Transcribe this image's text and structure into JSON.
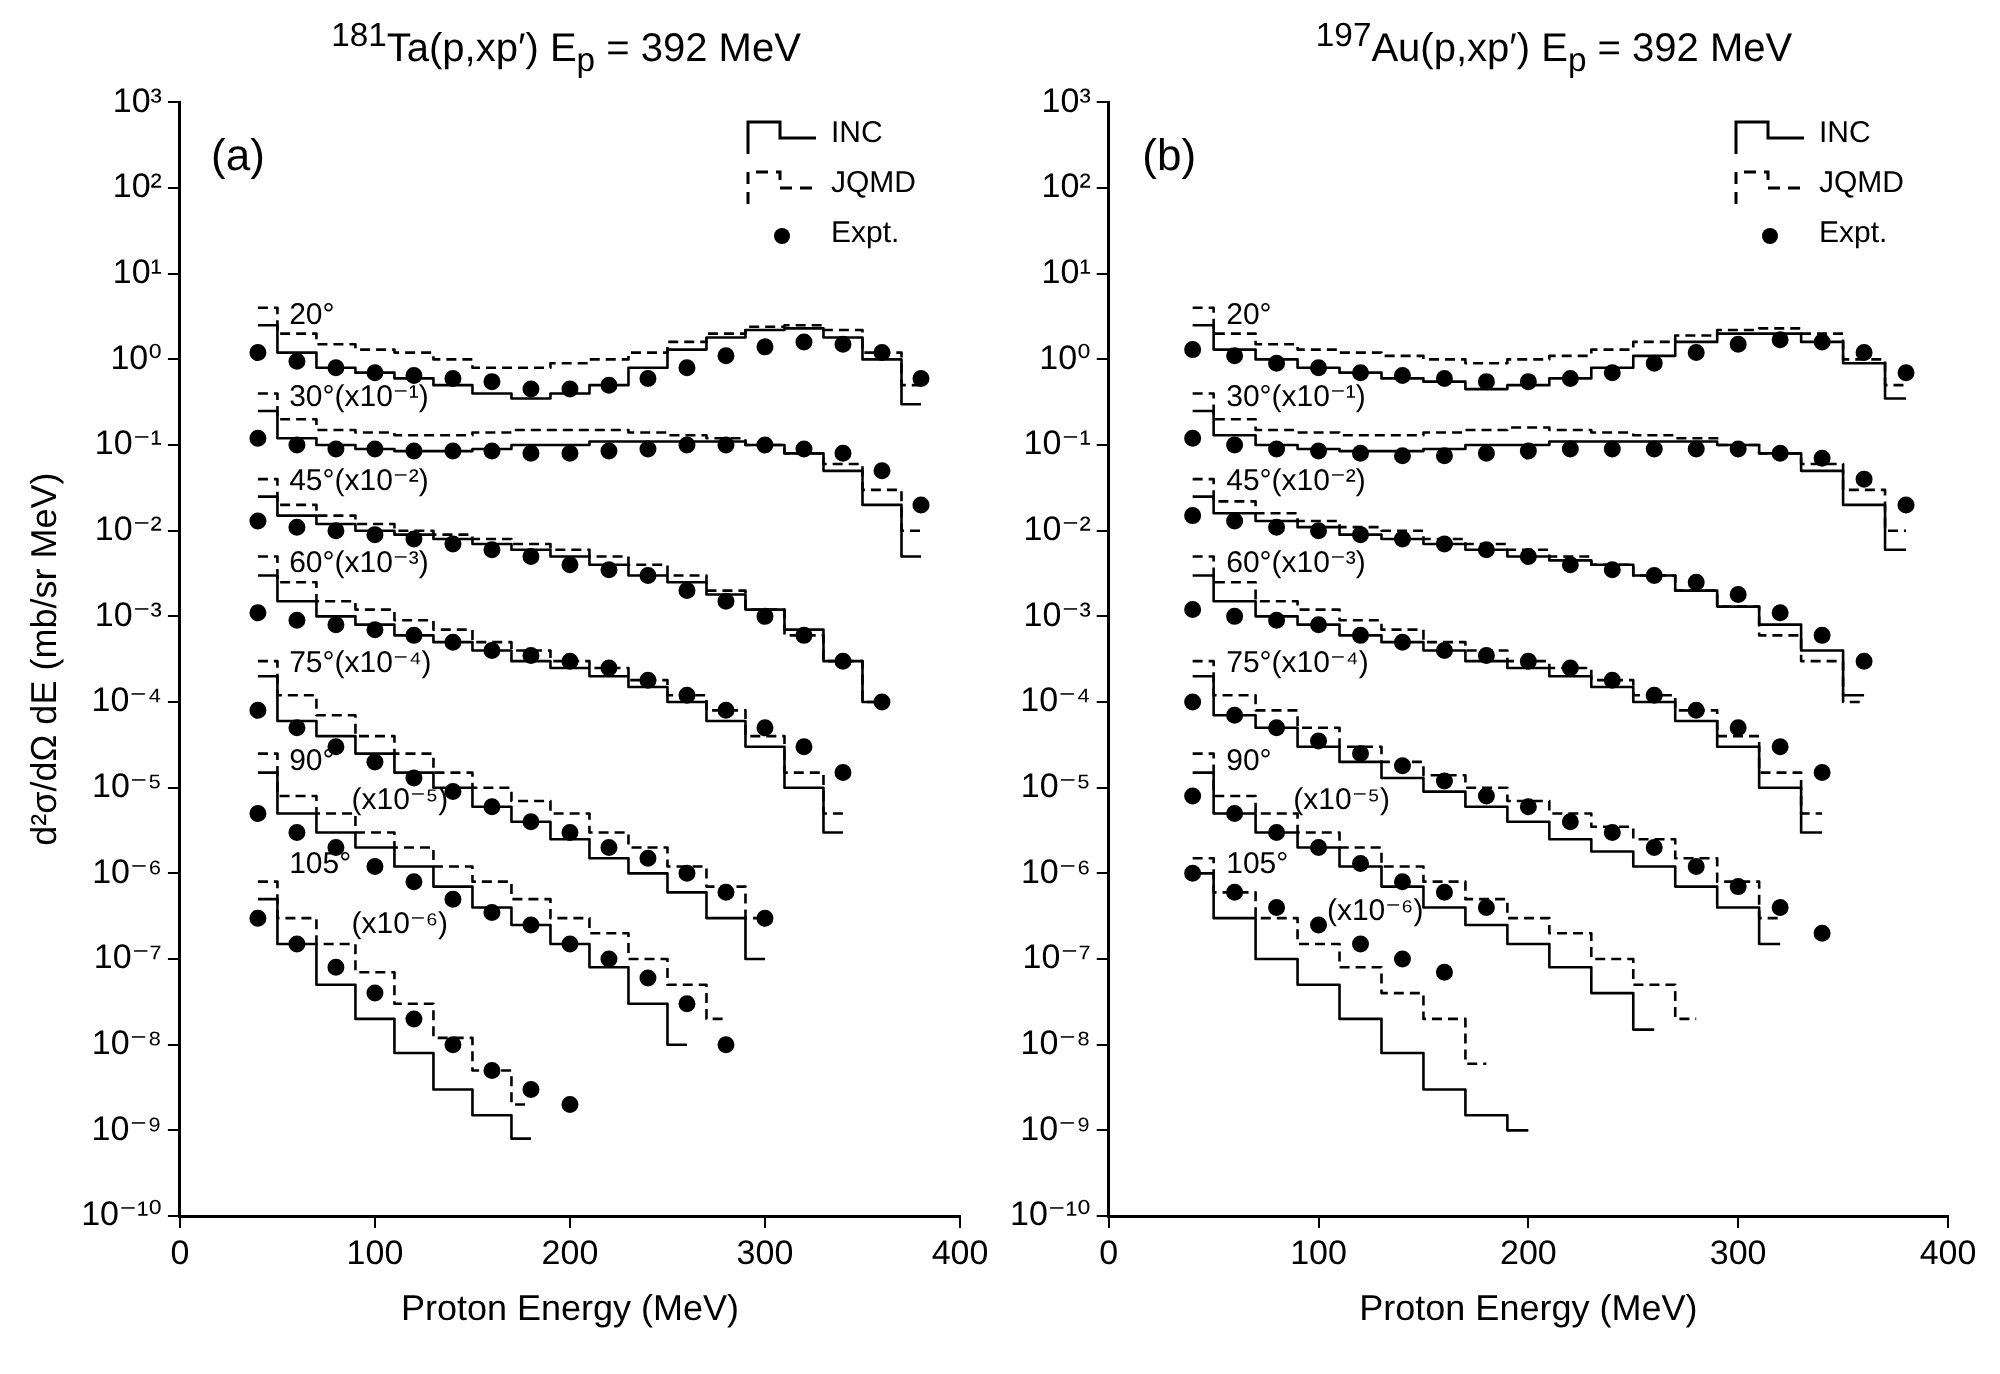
{
  "chart_data": [
    {
      "type": "step",
      "title": "$^{181}$Ta(p,xp′)   E$_{p}$ = 392 MeV",
      "xlabel": "Proton Energy (MeV)",
      "ylabel": "d²σ/dΩ dE (mb/sr MeV)",
      "log": true,
      "legend": "top right",
      "xlim": [
        0,
        400
      ],
      "ylim": [
        1e-10,
        1000
      ],
      "xticks": [
        0,
        100,
        200,
        300,
        400
      ],
      "yticks": [
        {
          "value": 1e-10,
          "label": "10⁻¹⁰"
        },
        {
          "value": 1e-09,
          "label": "10⁻⁹"
        },
        {
          "value": 1e-08,
          "label": "10⁻⁸"
        },
        {
          "value": 1e-07,
          "label": "10⁻⁷"
        },
        {
          "value": 1e-06,
          "label": "10⁻⁶"
        },
        {
          "value": 1e-05,
          "label": "10⁻⁵"
        },
        {
          "value": 0.0001,
          "label": "10⁻⁴"
        },
        {
          "value": 0.001,
          "label": "10⁻³"
        },
        {
          "value": 0.01,
          "label": "10⁻²"
        },
        {
          "value": 0.1,
          "label": "10⁻¹"
        },
        {
          "value": 1,
          "label": "10⁰"
        },
        {
          "value": 10,
          "label": "10¹"
        },
        {
          "value": 100,
          "label": "10²"
        },
        {
          "value": 1000,
          "label": "10³"
        }
      ],
      "x": [
        40,
        60,
        80,
        100,
        120,
        140,
        160,
        180,
        200,
        220,
        240,
        260,
        280,
        300,
        320,
        340,
        360,
        380
      ],
      "annotations": [
        "(a)",
        "20°",
        "30°(x10⁻¹)",
        "45°(x10⁻²)",
        "60°(x10⁻³)",
        "75°(x10⁻⁴)",
        "90°",
        "(x10⁻⁵)",
        "105°",
        "(x10⁻⁶)"
      ],
      "series": [
        {
          "name": "INC",
          "line_style": "solid",
          "color": "#000000",
          "values": [
            2.5,
            1.2,
            0.8,
            0.7,
            0.6,
            0.5,
            0.4,
            0.35,
            0.4,
            0.5,
            0.8,
            1.3,
            1.8,
            2.2,
            2.3,
            1.8,
            1,
            0.3
          ]
        },
        {
          "name": "JQMD",
          "line_style": "dashed",
          "color": "#000000",
          "values": [
            4,
            2,
            1.5,
            1.3,
            1.2,
            1,
            0.8,
            0.8,
            0.9,
            1,
            1.2,
            1.6,
            2,
            2.4,
            2.5,
            2.2,
            1.2,
            0.5
          ]
        },
        {
          "name": "Expt.",
          "type": "scatter",
          "marker": "circle",
          "color": "#000000",
          "values": [
            1.2,
            0.95,
            0.8,
            0.7,
            0.65,
            0.6,
            0.55,
            0.45,
            0.45,
            0.5,
            0.6,
            0.8,
            1.1,
            1.4,
            1.6,
            1.5,
            1.2,
            0.6
          ]
        },
        {
          "line_style": "solid",
          "color": "#000000",
          "values": [
            0.25,
            0.12,
            0.1,
            0.09,
            0.085,
            0.085,
            0.09,
            0.1,
            0.1,
            0.11,
            0.11,
            0.11,
            0.11,
            0.1,
            0.08,
            0.05,
            0.02,
            0.005
          ]
        },
        {
          "line_style": "dashed",
          "color": "#000000",
          "values": [
            0.4,
            0.2,
            0.15,
            0.14,
            0.13,
            0.13,
            0.14,
            0.15,
            0.15,
            0.15,
            0.14,
            0.13,
            0.12,
            0.1,
            0.08,
            0.06,
            0.03,
            0.01
          ]
        },
        {
          "type": "scatter",
          "marker": "circle",
          "color": "#000000",
          "values": [
            0.12,
            0.1,
            0.09,
            0.09,
            0.085,
            0.085,
            0.085,
            0.08,
            0.08,
            0.085,
            0.09,
            0.1,
            0.1,
            0.1,
            0.09,
            0.08,
            0.05,
            0.02
          ]
        },
        {
          "line_style": "solid",
          "color": "#000000",
          "values": [
            0.025,
            0.015,
            0.012,
            0.01,
            0.009,
            0.008,
            0.007,
            0.006,
            0.005,
            0.004,
            0.003,
            0.0025,
            0.0018,
            0.0012,
            0.0007,
            0.0003,
            0.0001,
            null
          ]
        },
        {
          "line_style": "dashed",
          "color": "#000000",
          "values": [
            0.04,
            0.02,
            0.015,
            0.012,
            0.01,
            0.009,
            0.008,
            0.007,
            0.006,
            0.005,
            0.004,
            0.003,
            0.002,
            0.0012,
            0.0006,
            0.0003,
            0.0001,
            null
          ]
        },
        {
          "type": "scatter",
          "marker": "circle",
          "color": "#000000",
          "values": [
            0.013,
            0.011,
            0.01,
            0.009,
            0.008,
            0.007,
            0.006,
            0.005,
            0.004,
            0.0035,
            0.003,
            0.002,
            0.0015,
            0.001,
            0.0006,
            0.0003,
            0.0001,
            null
          ]
        },
        {
          "line_style": "solid",
          "color": "#000000",
          "values": [
            0.003,
            0.0015,
            0.001,
            0.0008,
            0.0006,
            0.0005,
            0.0004,
            0.0003,
            0.00025,
            0.0002,
            0.00015,
            0.0001,
            6e-05,
            3e-05,
            1e-05,
            3e-06,
            null,
            null
          ]
        },
        {
          "line_style": "dashed",
          "color": "#000000",
          "values": [
            0.005,
            0.0025,
            0.0015,
            0.0012,
            0.0009,
            0.0007,
            0.0005,
            0.0004,
            0.0003,
            0.00025,
            0.00018,
            0.00012,
            8e-05,
            4e-05,
            1.5e-05,
            5e-06,
            null,
            null
          ]
        },
        {
          "type": "scatter",
          "marker": "circle",
          "color": "#000000",
          "values": [
            0.0011,
            0.0009,
            0.0008,
            0.0007,
            0.0006,
            0.0005,
            0.0004,
            0.00035,
            0.0003,
            0.00025,
            0.00018,
            0.00012,
            8e-05,
            5e-05,
            3e-05,
            1.5e-05,
            null,
            null
          ]
        },
        {
          "line_style": "solid",
          "color": "#000000",
          "values": [
            0.0002,
            6e-05,
            4e-05,
            2.5e-05,
            1.5e-05,
            1e-05,
            6e-06,
            4e-06,
            2.5e-06,
            1.5e-06,
            1e-06,
            6e-07,
            3e-07,
            1e-07,
            null,
            null,
            null,
            null
          ]
        },
        {
          "line_style": "dashed",
          "color": "#000000",
          "values": [
            0.0003,
            0.00012,
            7e-05,
            4e-05,
            2.5e-05,
            1.5e-05,
            1e-05,
            7e-06,
            5e-06,
            3e-06,
            2e-06,
            1.2e-06,
            7e-07,
            3e-07,
            null,
            null,
            null,
            null
          ]
        },
        {
          "type": "scatter",
          "marker": "circle",
          "color": "#000000",
          "values": [
            8e-05,
            5e-05,
            3e-05,
            2e-05,
            1.3e-05,
            9e-06,
            6e-06,
            4e-06,
            3e-06,
            2e-06,
            1.5e-06,
            1e-06,
            6e-07,
            3e-07,
            null,
            null,
            null,
            null
          ]
        },
        {
          "line_style": "solid",
          "color": "#000000",
          "values": [
            1.5e-05,
            5e-06,
            3e-06,
            2e-06,
            1.2e-06,
            7e-07,
            4e-07,
            2.5e-07,
            1.5e-07,
            8e-08,
            3e-08,
            1e-08,
            null,
            null,
            null,
            null,
            null,
            null
          ]
        },
        {
          "line_style": "dashed",
          "color": "#000000",
          "values": [
            2.5e-05,
            8e-06,
            5e-06,
            3e-06,
            2e-06,
            1.2e-06,
            8e-07,
            5e-07,
            3e-07,
            2e-07,
            1e-07,
            5e-08,
            2e-08,
            null,
            null,
            null,
            null,
            null
          ]
        },
        {
          "type": "scatter",
          "marker": "circle",
          "color": "#000000",
          "values": [
            5e-06,
            3e-06,
            2e-06,
            1.2e-06,
            8e-07,
            5e-07,
            3.5e-07,
            2.5e-07,
            1.5e-07,
            1e-07,
            6e-08,
            3e-08,
            1e-08,
            null,
            null,
            null,
            null,
            null
          ]
        },
        {
          "line_style": "solid",
          "color": "#000000",
          "values": [
            5e-07,
            1.5e-07,
            5e-08,
            2e-08,
            8e-09,
            3e-09,
            1.5e-09,
            8e-10,
            null,
            null,
            null,
            null,
            null,
            null,
            null,
            null,
            null,
            null
          ]
        },
        {
          "line_style": "dashed",
          "color": "#000000",
          "values": [
            8e-07,
            3e-07,
            1.5e-07,
            7e-08,
            3e-08,
            1.2e-08,
            5e-09,
            2e-09,
            null,
            null,
            null,
            null,
            null,
            null,
            null,
            null,
            null,
            null
          ]
        },
        {
          "type": "scatter",
          "marker": "circle",
          "color": "#000000",
          "values": [
            3e-07,
            1.5e-07,
            8e-08,
            4e-08,
            2e-08,
            1e-08,
            5e-09,
            3e-09,
            2e-09,
            null,
            null,
            null,
            null,
            null,
            null,
            null,
            null,
            null
          ]
        }
      ]
    },
    {
      "type": "step",
      "title": "$^{197}$Au(p,xp′)   E$_{p}$ = 392 MeV",
      "xlabel": "Proton Energy (MeV)",
      "log": true,
      "legend": "top right",
      "xlim": [
        0,
        400
      ],
      "ylim": [
        1e-10,
        1000
      ],
      "xticks": [
        0,
        100,
        200,
        300,
        400
      ],
      "yticks": [
        {
          "value": 1e-10,
          "label": "10⁻¹⁰"
        },
        {
          "value": 1e-09,
          "label": "10⁻⁹"
        },
        {
          "value": 1e-08,
          "label": "10⁻⁸"
        },
        {
          "value": 1e-07,
          "label": "10⁻⁷"
        },
        {
          "value": 1e-06,
          "label": "10⁻⁶"
        },
        {
          "value": 1e-05,
          "label": "10⁻⁵"
        },
        {
          "value": 0.0001,
          "label": "10⁻⁴"
        },
        {
          "value": 0.001,
          "label": "10⁻³"
        },
        {
          "value": 0.01,
          "label": "10⁻²"
        },
        {
          "value": 0.1,
          "label": "10⁻¹"
        },
        {
          "value": 1,
          "label": "10⁰"
        },
        {
          "value": 10,
          "label": "10¹"
        },
        {
          "value": 100,
          "label": "10²"
        },
        {
          "value": 1000,
          "label": "10³"
        }
      ],
      "x": [
        40,
        60,
        80,
        100,
        120,
        140,
        160,
        180,
        200,
        220,
        240,
        260,
        280,
        300,
        320,
        340,
        360,
        380
      ],
      "annotations": [
        "(b)",
        "20°",
        "30°(x10⁻¹)",
        "45°(x10⁻²)",
        "60°(x10⁻³)",
        "75°(x10⁻⁴)",
        "90°",
        "(x10⁻⁵)",
        "105°",
        "(x10⁻⁶)"
      ],
      "series": [
        {
          "name": "INC",
          "line_style": "solid",
          "color": "#000000",
          "values": [
            2.5,
            1.3,
            1,
            0.8,
            0.7,
            0.6,
            0.55,
            0.45,
            0.5,
            0.6,
            0.8,
            1.1,
            1.6,
            2,
            2,
            1.6,
            0.9,
            0.35
          ]
        },
        {
          "name": "JQMD",
          "line_style": "dashed",
          "color": "#000000",
          "values": [
            4,
            2,
            1.5,
            1.3,
            1.2,
            1.1,
            1,
            0.9,
            1,
            1.1,
            1.3,
            1.6,
            1.9,
            2.2,
            2.3,
            2,
            1,
            0.5
          ]
        },
        {
          "name": "Expt.",
          "type": "scatter",
          "marker": "circle",
          "color": "#000000",
          "values": [
            1.3,
            1.1,
            0.9,
            0.8,
            0.7,
            0.65,
            0.6,
            0.55,
            0.55,
            0.6,
            0.7,
            0.9,
            1.2,
            1.5,
            1.7,
            1.6,
            1.2,
            0.7
          ]
        },
        {
          "line_style": "solid",
          "color": "#000000",
          "values": [
            0.25,
            0.13,
            0.1,
            0.09,
            0.085,
            0.085,
            0.09,
            0.1,
            0.1,
            0.11,
            0.11,
            0.11,
            0.11,
            0.1,
            0.08,
            0.05,
            0.02,
            0.006
          ]
        },
        {
          "line_style": "dashed",
          "color": "#000000",
          "values": [
            0.4,
            0.2,
            0.15,
            0.14,
            0.13,
            0.13,
            0.14,
            0.15,
            0.16,
            0.15,
            0.14,
            0.13,
            0.12,
            0.1,
            0.08,
            0.06,
            0.03,
            0.01
          ]
        },
        {
          "type": "scatter",
          "marker": "circle",
          "color": "#000000",
          "values": [
            0.12,
            0.1,
            0.09,
            0.085,
            0.08,
            0.075,
            0.075,
            0.08,
            0.085,
            0.09,
            0.09,
            0.09,
            0.09,
            0.09,
            0.08,
            0.07,
            0.04,
            0.02
          ]
        },
        {
          "line_style": "solid",
          "color": "#000000",
          "values": [
            0.025,
            0.016,
            0.013,
            0.011,
            0.009,
            0.008,
            0.007,
            0.006,
            0.005,
            0.0045,
            0.004,
            0.003,
            0.002,
            0.0013,
            0.0008,
            0.0004,
            0.00012,
            null
          ]
        },
        {
          "line_style": "dashed",
          "color": "#000000",
          "values": [
            0.04,
            0.022,
            0.016,
            0.013,
            0.011,
            0.01,
            0.008,
            0.007,
            0.006,
            0.005,
            0.004,
            0.003,
            0.002,
            0.0013,
            0.0006,
            0.0003,
            0.0001,
            null
          ]
        },
        {
          "type": "scatter",
          "marker": "circle",
          "color": "#000000",
          "values": [
            0.015,
            0.013,
            0.011,
            0.01,
            0.009,
            0.008,
            0.007,
            0.006,
            0.005,
            0.004,
            0.0035,
            0.003,
            0.0025,
            0.0018,
            0.0011,
            0.0006,
            0.0003,
            null
          ]
        },
        {
          "line_style": "solid",
          "color": "#000000",
          "values": [
            0.003,
            0.0015,
            0.001,
            0.0008,
            0.0006,
            0.0005,
            0.0004,
            0.0003,
            0.00025,
            0.0002,
            0.00015,
            0.0001,
            6e-05,
            3e-05,
            1e-05,
            3e-06,
            null,
            null
          ]
        },
        {
          "line_style": "dashed",
          "color": "#000000",
          "values": [
            0.005,
            0.0025,
            0.0015,
            0.0012,
            0.0009,
            0.0007,
            0.0005,
            0.0004,
            0.0003,
            0.00025,
            0.00018,
            0.00012,
            8e-05,
            4e-05,
            1.5e-05,
            5e-06,
            null,
            null
          ]
        },
        {
          "type": "scatter",
          "marker": "circle",
          "color": "#000000",
          "values": [
            0.0012,
            0.001,
            0.0009,
            0.0008,
            0.0006,
            0.0005,
            0.0004,
            0.00035,
            0.0003,
            0.00025,
            0.00018,
            0.00012,
            8e-05,
            5e-05,
            3e-05,
            1.5e-05,
            null,
            null
          ]
        },
        {
          "line_style": "solid",
          "color": "#000000",
          "values": [
            0.0002,
            7e-05,
            5e-05,
            3e-05,
            2e-05,
            1.3e-05,
            9e-06,
            6e-06,
            4e-06,
            2.5e-06,
            1.8e-06,
            1.2e-06,
            7e-07,
            4e-07,
            1.5e-07,
            null,
            null,
            null
          ]
        },
        {
          "line_style": "dashed",
          "color": "#000000",
          "values": [
            0.0003,
            0.00012,
            8e-05,
            5e-05,
            3e-05,
            2e-05,
            1.4e-05,
            1e-05,
            7e-06,
            5e-06,
            3.5e-06,
            2.5e-06,
            1.5e-06,
            8e-07,
            3e-07,
            null,
            null,
            null
          ]
        },
        {
          "type": "scatter",
          "marker": "circle",
          "color": "#000000",
          "values": [
            0.0001,
            7e-05,
            5e-05,
            3.5e-05,
            2.5e-05,
            1.8e-05,
            1.2e-05,
            8e-06,
            6e-06,
            4e-06,
            3e-06,
            2e-06,
            1.2e-06,
            7e-07,
            4e-07,
            2e-07,
            null,
            null
          ]
        },
        {
          "line_style": "solid",
          "color": "#000000",
          "values": [
            1.5e-05,
            5e-06,
            3e-06,
            2e-06,
            1.2e-06,
            7e-07,
            4e-07,
            2.5e-07,
            1.5e-07,
            8e-08,
            4e-08,
            1.5e-08,
            null,
            null,
            null,
            null,
            null,
            null
          ]
        },
        {
          "line_style": "dashed",
          "color": "#000000",
          "values": [
            2.5e-05,
            8e-06,
            5e-06,
            3e-06,
            2e-06,
            1.2e-06,
            8e-07,
            5e-07,
            3e-07,
            2e-07,
            1e-07,
            5e-08,
            2e-08,
            null,
            null,
            null,
            null,
            null
          ]
        },
        {
          "type": "scatter",
          "marker": "circle",
          "color": "#000000",
          "values": [
            8e-06,
            5e-06,
            3e-06,
            2e-06,
            1.3e-06,
            8e-07,
            6e-07,
            4e-07,
            null,
            null,
            null,
            null,
            null,
            null,
            null,
            null,
            null,
            null
          ]
        },
        {
          "line_style": "solid",
          "color": "#000000",
          "values": [
            1e-06,
            3e-07,
            1e-07,
            5e-08,
            2e-08,
            8e-09,
            3e-09,
            1.5e-09,
            1e-09,
            null,
            null,
            null,
            null,
            null,
            null,
            null,
            null,
            null
          ]
        },
        {
          "line_style": "dashed",
          "color": "#000000",
          "values": [
            1.5e-06,
            6e-07,
            3e-07,
            1.5e-07,
            8e-08,
            4e-08,
            2e-08,
            6e-09,
            null,
            null,
            null,
            null,
            null,
            null,
            null,
            null,
            null,
            null
          ]
        },
        {
          "type": "scatter",
          "marker": "circle",
          "color": "#000000",
          "values": [
            1e-06,
            6e-07,
            4e-07,
            2.5e-07,
            1.5e-07,
            1e-07,
            7e-08,
            null,
            null,
            null,
            null,
            null,
            null,
            null,
            null,
            null,
            null,
            null
          ]
        }
      ]
    }
  ]
}
